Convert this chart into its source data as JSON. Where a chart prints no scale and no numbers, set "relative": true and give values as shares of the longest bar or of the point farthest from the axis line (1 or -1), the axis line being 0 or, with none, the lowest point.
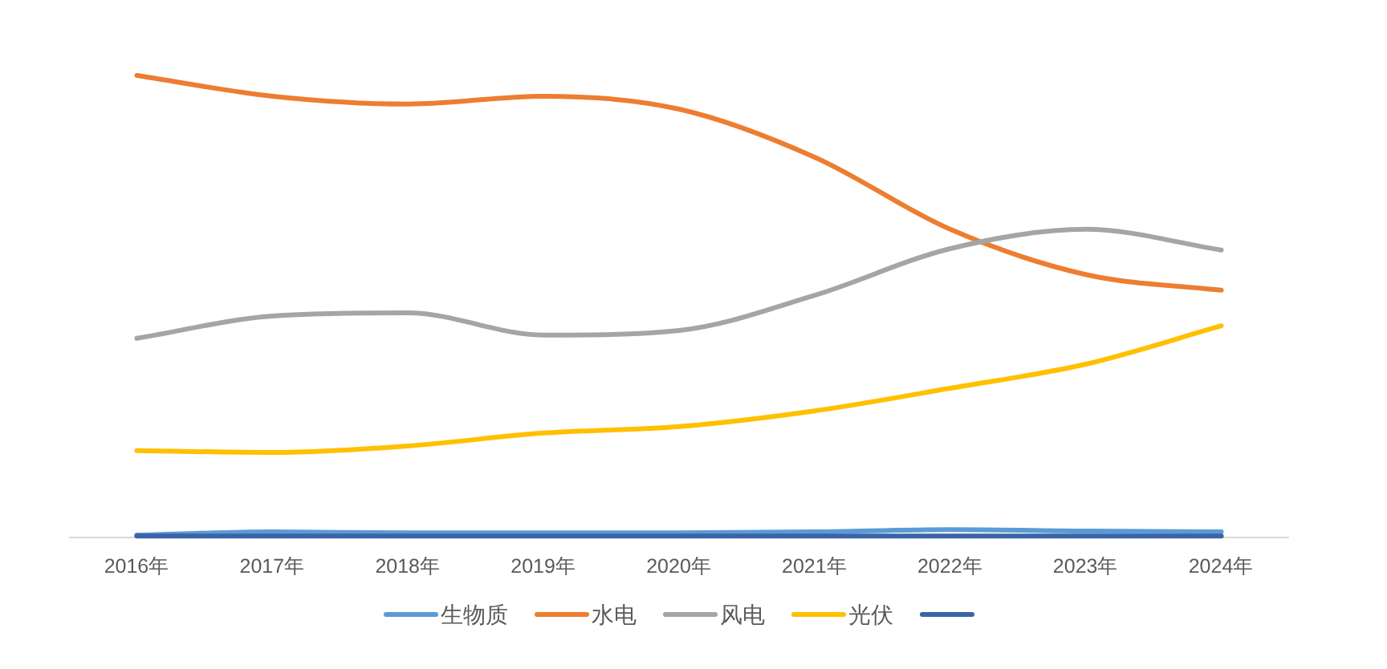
{
  "chart_data": {
    "type": "line",
    "relative": true,
    "line_style": "solid",
    "legend": "bottom",
    "categories": [
      "2016年",
      "2017年",
      "2018年",
      "2019年",
      "2020年",
      "2021年",
      "2022年",
      "2023年",
      "2024年"
    ],
    "series": [
      {
        "name": "生物质",
        "color": "#5b9bd5",
        "values": [
          0.005,
          0.012,
          0.01,
          0.01,
          0.01,
          0.012,
          0.017,
          0.014,
          0.012
        ]
      },
      {
        "name": "水电",
        "color": "#ed7d31",
        "values": [
          1,
          0.955,
          0.938,
          0.955,
          0.927,
          0.823,
          0.667,
          0.569,
          0.535
        ]
      },
      {
        "name": "风电",
        "color": "#a5a5a5",
        "values": [
          0.431,
          0.479,
          0.486,
          0.438,
          0.448,
          0.524,
          0.625,
          0.667,
          0.622
        ]
      },
      {
        "name": "光伏",
        "color": "#ffc000",
        "values": [
          0.188,
          0.184,
          0.198,
          0.226,
          0.24,
          0.274,
          0.323,
          0.375,
          0.458
        ]
      },
      {
        "color": "#3a63a8",
        "values": [
          0.003,
          0.003,
          0.003,
          0.003,
          0.003,
          0.003,
          0.003,
          0.003,
          0.003
        ]
      }
    ]
  }
}
